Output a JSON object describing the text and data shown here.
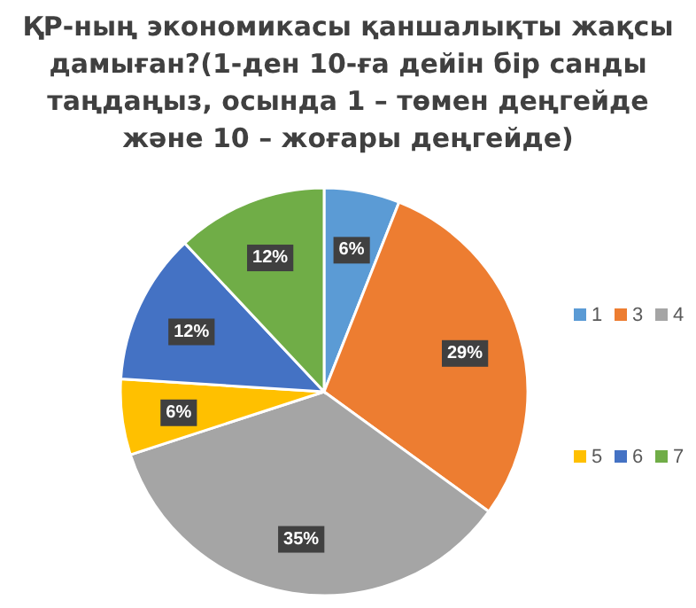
{
  "chart_data": {
    "type": "pie",
    "title": "ҚР-ның экономикасы қаншалықты жақсы дамыған?(1-ден 10-ға дейін бір санды таңдаңыз, осында 1 – төмен деңгейде және 10 – жоғары деңгейде)",
    "categories": [
      "1",
      "3",
      "4",
      "5",
      "6",
      "7"
    ],
    "values": [
      6,
      29,
      35,
      6,
      12,
      12
    ],
    "value_labels": [
      "6%",
      "29%",
      "35%",
      "6%",
      "12%",
      "12%"
    ],
    "colors": [
      "#5b9bd5",
      "#ed7d31",
      "#a5a5a5",
      "#ffc000",
      "#4472c4",
      "#70ad47"
    ],
    "legend": "right"
  }
}
